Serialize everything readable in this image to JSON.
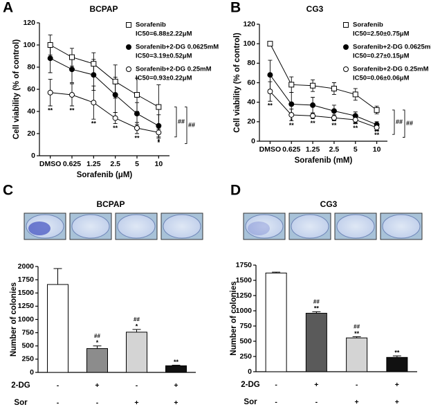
{
  "chart_data": [
    {
      "type": "line",
      "panel": "A",
      "title": "BCPAP",
      "x_label": "Sorafenib (μM)",
      "y_label": "Cell viability (% of control)",
      "categories": [
        "DMSO",
        "0.625",
        "1.25",
        "2.5",
        "5",
        "10"
      ],
      "ylim": [
        0,
        120
      ],
      "yticks": [
        0,
        20,
        40,
        60,
        80,
        100,
        120
      ],
      "series": [
        {
          "name": "Sorafenib",
          "ic50": "IC50=6.88±2.22μM",
          "marker": "square-open",
          "color": "#000000",
          "values": [
            100,
            89,
            83,
            67,
            55,
            44
          ],
          "errors": [
            9,
            8,
            10,
            15,
            15,
            20
          ],
          "significance": [
            null,
            null,
            null,
            null,
            null,
            null
          ]
        },
        {
          "name": "Sorafenib+2-DG 0.0625mM",
          "ic50": "IC50=3.19±0.52μM",
          "marker": "circle-filled",
          "color": "#000000",
          "values": [
            88,
            78,
            73,
            55,
            38,
            27
          ],
          "errors": [
            13,
            12,
            14,
            16,
            10,
            10
          ],
          "significance": [
            null,
            null,
            null,
            null,
            "*",
            "*"
          ]
        },
        {
          "name": "Sorafenib+2-DG 0.25mM",
          "ic50": "IC50=0.93±0.22μM",
          "marker": "circle-open",
          "color": "#000000",
          "values": [
            57,
            55,
            48,
            34,
            25,
            21
          ],
          "errors": [
            12,
            10,
            15,
            5,
            5,
            5
          ],
          "significance": [
            "**",
            "**",
            "**",
            "**",
            "**",
            "*"
          ]
        }
      ],
      "bracket_labels": [
        "##",
        "##"
      ]
    },
    {
      "type": "line",
      "panel": "B",
      "title": "CG3",
      "x_label": "Sorafenib (mM)",
      "y_label": "Cell viability (% of control)",
      "categories": [
        "DMSO",
        "0.625",
        "1.25",
        "2.5",
        "5",
        "10"
      ],
      "ylim": [
        0,
        120
      ],
      "yticks": [
        0,
        20,
        40,
        60,
        80,
        100,
        120
      ],
      "series": [
        {
          "name": "Sorafenib",
          "ic50": "IC50=2.50±0.75μM",
          "marker": "square-open",
          "color": "#000000",
          "values": [
            100,
            58,
            57,
            54,
            48,
            32
          ],
          "errors": [
            0,
            8,
            6,
            6,
            6,
            4
          ],
          "significance": [
            null,
            null,
            null,
            null,
            null,
            null
          ]
        },
        {
          "name": "Sorafenib+2-DG 0.0625mM",
          "ic50": "IC50=0.27±0.15μM",
          "marker": "circle-filled",
          "color": "#000000",
          "values": [
            68,
            38,
            37,
            31,
            26,
            17
          ],
          "errors": [
            15,
            12,
            8,
            6,
            4,
            3
          ],
          "significance": [
            "**",
            "*",
            "*",
            "**",
            "**",
            "**"
          ]
        },
        {
          "name": "Sorafenib+2-DG 0.25mM",
          "ic50": "IC50=0.06±0.06μM",
          "marker": "circle-open",
          "color": "#000000",
          "values": [
            51,
            27,
            26,
            24,
            22,
            14
          ],
          "errors": [
            10,
            6,
            3,
            3,
            4,
            3
          ],
          "significance": [
            "**",
            "**",
            "**",
            "**",
            "**",
            "**"
          ]
        }
      ],
      "bracket_labels": [
        "##",
        "##"
      ]
    },
    {
      "type": "bar",
      "panel": "C",
      "title": "BCPAP",
      "y_label": "Number of colonies",
      "ylim": [
        0,
        2000
      ],
      "yticks": [
        0,
        250,
        500,
        750,
        1000,
        1250,
        1500,
        1750,
        2000
      ],
      "values": [
        1660,
        450,
        760,
        125
      ],
      "errors": [
        300,
        50,
        50,
        10
      ],
      "colors": [
        "#ffffff",
        "#8c8c8c",
        "#d4d4d4",
        "#111111"
      ],
      "hash": [
        null,
        "##",
        "##",
        null
      ],
      "star": [
        null,
        "*",
        "*",
        "**"
      ],
      "rows": [
        {
          "name": "2-DG",
          "labels": [
            "-",
            "+",
            "-",
            "+"
          ]
        },
        {
          "name": "Sor",
          "labels": [
            "-",
            "-",
            "+",
            "+"
          ]
        }
      ]
    },
    {
      "type": "bar",
      "panel": "D",
      "title": "CG3",
      "y_label": "Number of colonies",
      "ylim": [
        0,
        1750
      ],
      "yticks": [
        0,
        250,
        500,
        750,
        1000,
        1250,
        1500,
        1750
      ],
      "values": [
        1620,
        960,
        555,
        235
      ],
      "errors": [
        15,
        25,
        20,
        25
      ],
      "colors": [
        "#ffffff",
        "#5a5a5a",
        "#d4d4d4",
        "#111111"
      ],
      "hash": [
        null,
        "##",
        "##",
        null
      ],
      "star": [
        null,
        "**",
        "**",
        "**"
      ],
      "rows": [
        {
          "name": "2-DG",
          "labels": [
            "-",
            "+",
            "-",
            "+"
          ]
        },
        {
          "name": "Sor",
          "labels": [
            "-",
            "-",
            "+",
            "+"
          ]
        }
      ]
    }
  ]
}
